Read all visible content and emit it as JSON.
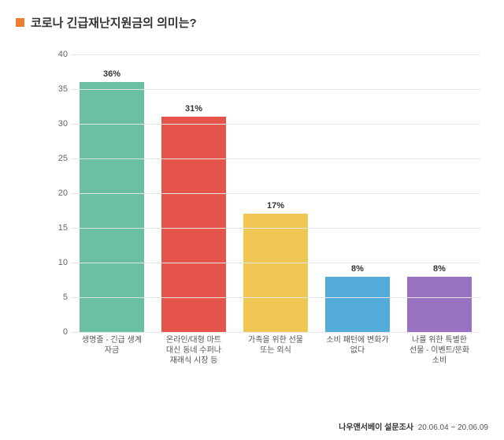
{
  "title": {
    "text": "코로나 긴급재난지원금의 의미는?",
    "marker_color": "#ee7c31",
    "text_color": "#333333",
    "fontsize": 15
  },
  "chart": {
    "type": "bar",
    "ylim": [
      0,
      40
    ],
    "ytick_step": 5,
    "yticks": [
      0,
      5,
      10,
      15,
      20,
      25,
      30,
      35,
      40
    ],
    "grid_color": "#e5e5e5",
    "background_color": "#ffffff",
    "value_label_suffix": "%",
    "bar_width": 0.78,
    "categories": [
      "생명줄 - 긴급 생계\n자금",
      "온라인/대형 마트\n대신 동네 수퍼나\n재래식 시장 등",
      "가족을 위한 선물\n또는 외식",
      "소비 패턴에 변화가\n없다",
      "나를 위한 특별한\n선물 - 이벤트/문화\n소비"
    ],
    "values": [
      36,
      31,
      17,
      8,
      8
    ],
    "bar_colors": [
      "#6bbfa3",
      "#e6534b",
      "#efc752",
      "#53abd8",
      "#9a72c2"
    ],
    "label_fontsize": 10,
    "value_fontsize": 11,
    "tick_fontsize": 11,
    "tick_color": "#666666"
  },
  "footer": {
    "source": "나우앤서베이 설문조사",
    "dates": "20.06.04 ~ 20.06.09"
  }
}
